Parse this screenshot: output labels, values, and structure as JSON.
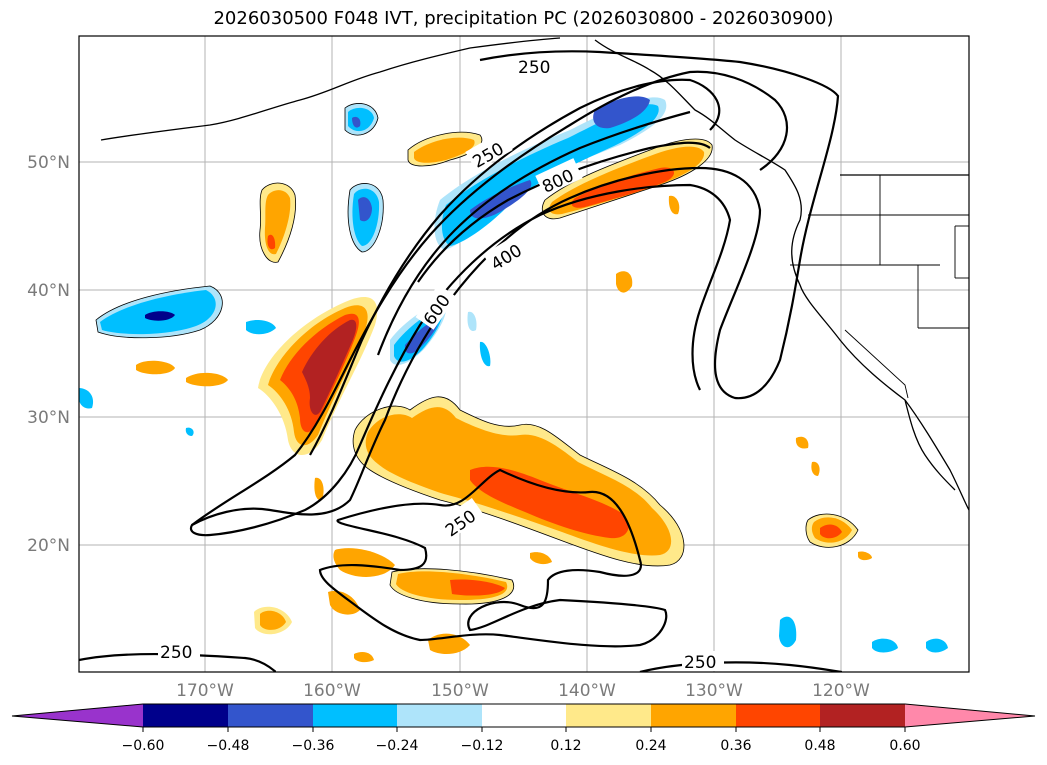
{
  "title": "2026030500 F048 IVT, precipitation PC (2026030800 - 2026030900)",
  "map": {
    "lat_labels": [
      "50°N",
      "40°N",
      "30°N",
      "20°N"
    ],
    "lon_labels": [
      "170°W",
      "160°W",
      "150°W",
      "140°W",
      "130°W",
      "120°W"
    ],
    "contour_labels": [
      "250",
      "250",
      "800",
      "400",
      "600",
      "250",
      "250",
      "250"
    ]
  },
  "colorbar": {
    "ticks": [
      "−0.60",
      "−0.48",
      "−0.36",
      "−0.24",
      "−0.12",
      "0.12",
      "0.24",
      "0.36",
      "0.48",
      "0.60"
    ],
    "colors": [
      "#9933cc",
      "#00008b",
      "#3355cc",
      "#00bfff",
      "#aee4fa",
      "#ffffff",
      "#ffe98a",
      "#ffa500",
      "#ff4500",
      "#b22222",
      "#ff88aa"
    ]
  }
}
